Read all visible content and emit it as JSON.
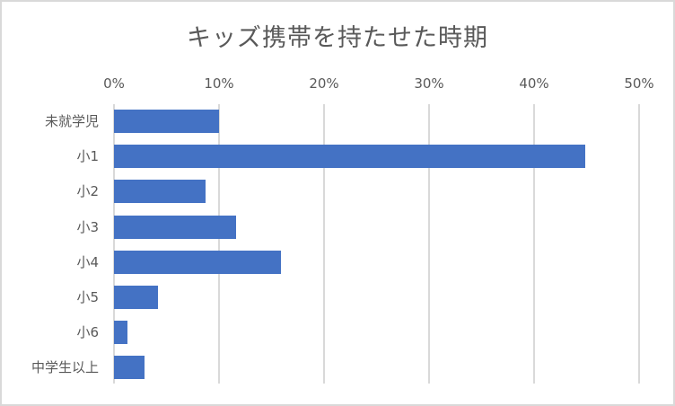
{
  "chart_data": {
    "type": "bar",
    "orientation": "horizontal",
    "title": "キッズ携帯を持たせた時期",
    "xlabel": "",
    "ylabel": "",
    "categories": [
      "未就学児",
      "小1",
      "小2",
      "小3",
      "小4",
      "小5",
      "小6",
      "中学生以上"
    ],
    "values": [
      10.0,
      44.9,
      8.7,
      11.6,
      15.9,
      4.2,
      1.3,
      2.9
    ],
    "value_unit": "%",
    "xlim": [
      0,
      50
    ],
    "x_ticks": [
      "0%",
      "10%",
      "20%",
      "30%",
      "40%",
      "50%"
    ],
    "x_axis_position": "top",
    "grid": true,
    "legend": null,
    "bar_color": "#4472C4"
  },
  "colors": {
    "bar": "#4472C4",
    "grid": "#D9D9D9",
    "text": "#595959",
    "border": "#D9D9D9"
  }
}
